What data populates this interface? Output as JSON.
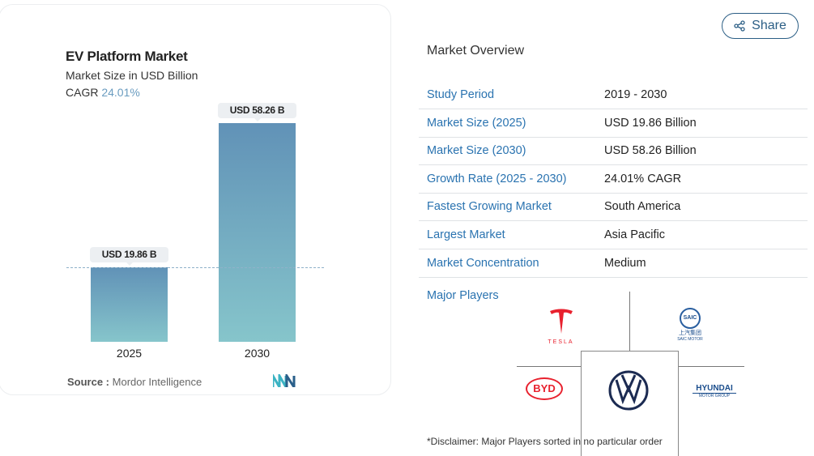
{
  "chart_data": {
    "type": "bar",
    "title": "EV Platform Market",
    "subtitle": "Market Size in USD Billion",
    "cagr_label": "CAGR",
    "cagr_value": "24.01%",
    "categories": [
      "2025",
      "2030"
    ],
    "values": [
      19.86,
      58.26
    ],
    "data_labels": [
      "USD 19.86 B",
      "USD 58.26 B"
    ],
    "ylim": [
      0,
      58.26
    ],
    "grid": false,
    "bar_colors": [
      "#6192b7",
      "#86c5cb"
    ],
    "reference_line": "dashed at 2025 value",
    "source_label": "Source :",
    "source": "Mordor Intelligence"
  },
  "share_label": "Share",
  "overview": {
    "title": "Market Overview",
    "rows": [
      {
        "k": "Study Period",
        "v": "2019 - 2030"
      },
      {
        "k": "Market Size (2025)",
        "v": "USD 19.86 Billion"
      },
      {
        "k": "Market Size (2030)",
        "v": "USD 58.26 Billion"
      },
      {
        "k": "Growth Rate (2025 - 2030)",
        "v": "24.01% CAGR"
      },
      {
        "k": "Fastest Growing Market",
        "v": "South America"
      },
      {
        "k": "Largest Market",
        "v": "Asia Pacific"
      },
      {
        "k": "Market Concentration",
        "v": "Medium"
      }
    ],
    "major_players_label": "Major Players",
    "players": [
      "Tesla",
      "SAIC Motor",
      "BYD",
      "Volkswagen",
      "Hyundai Motor Group"
    ],
    "logo_text": {
      "tesla": "TESLA",
      "saic": "SAIC",
      "saic_cn": "上汽集团",
      "saic_en": "SAIC MOTOR",
      "byd": "BYD",
      "hyundai": "HYUNDAI",
      "hyundai_sub": "MOTOR GROUP"
    },
    "disclaimer": "*Disclaimer: Major Players sorted in no particular order"
  }
}
